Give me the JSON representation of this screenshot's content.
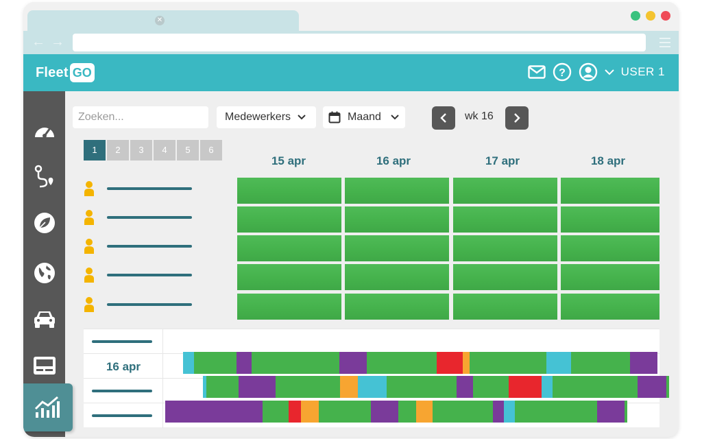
{
  "brand": {
    "name_part1": "Fleet",
    "name_part2": "GO",
    "accent": "#3ab8c2",
    "dark": "#575757"
  },
  "window": {
    "tab_close_icon": "close-icon",
    "dots": [
      "#39c27e",
      "#f4c430",
      "#ef4b57"
    ]
  },
  "header": {
    "user_label": "USER 1",
    "icons": [
      "mail-icon",
      "help-icon",
      "user-icon",
      "chevron-down-icon"
    ]
  },
  "sidebar": {
    "items": [
      "dashboard-icon",
      "route-icon",
      "leaf-icon",
      "globe-icon",
      "car-icon",
      "device-icon",
      "chart-icon"
    ]
  },
  "toolbar": {
    "search_placeholder": "Zoeken...",
    "employees_label": "Medewerkers",
    "period_label": "Maand",
    "week_label": "wk 16"
  },
  "pager": {
    "pages": [
      "1",
      "2",
      "3",
      "4",
      "5",
      "6"
    ],
    "active": "1"
  },
  "calendar": {
    "days": [
      "15 apr",
      "16 apr",
      "17 apr",
      "18 apr"
    ],
    "employee_rows": 5
  },
  "timeline": {
    "date_label": "16 apr",
    "colors": {
      "green": "#45b24c",
      "purple": "#7a3b9a",
      "cyan": "#45c2d4",
      "red": "#e8262d",
      "orange": "#f7a531"
    }
  }
}
